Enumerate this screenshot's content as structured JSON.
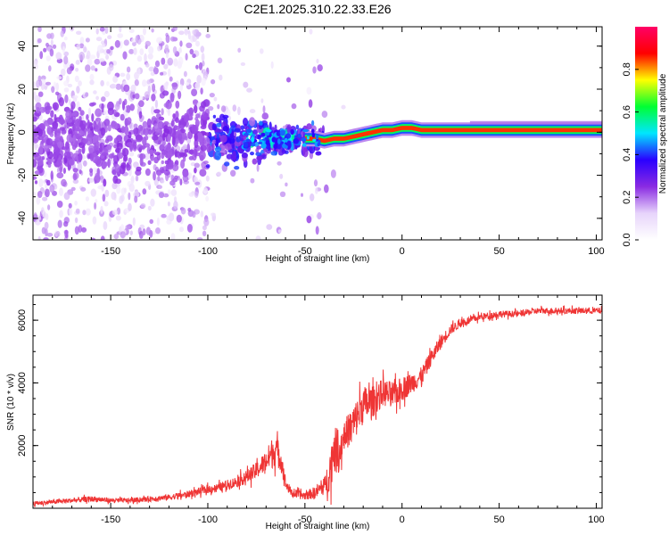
{
  "title": "C2E1.2025.310.22.33.E26",
  "chart_data": [
    {
      "type": "heatmap",
      "xlabel": "Height of straight line (km)",
      "ylabel": "Frequency (Hz)",
      "xlim": [
        -190,
        103
      ],
      "ylim": [
        -50,
        49
      ],
      "xticks": [
        -150,
        -100,
        -50,
        0,
        50,
        100
      ],
      "xtick_labels": [
        "-150",
        "-100",
        "-50",
        "0",
        "50",
        "100"
      ],
      "yticks": [
        -40,
        -20,
        0,
        20,
        40
      ],
      "ytick_labels": [
        "-40",
        "-20",
        "0",
        "20",
        "40"
      ],
      "carrier_path": {
        "x": [
          -60,
          -50,
          -45,
          -40,
          -35,
          -30,
          -25,
          -20,
          -15,
          -10,
          -5,
          0,
          5,
          10,
          20,
          40,
          60,
          80,
          103
        ],
        "y": [
          -3,
          -3,
          -3,
          -4,
          -3,
          -3,
          -2,
          -1,
          0,
          1,
          1,
          2,
          2,
          1,
          1,
          1,
          1,
          1,
          1
        ]
      },
      "colorbar": {
        "label": "Normalized spectral amplitude",
        "range": [
          0,
          1
        ],
        "ticks": [
          0.0,
          0.2,
          0.4,
          0.6,
          0.8
        ],
        "tick_labels": [
          "0.0",
          "0.2",
          "0.4",
          "0.6",
          "0.8"
        ],
        "colors": [
          "#ffffff",
          "#e7d4fb",
          "#8a2be2",
          "#2a00ff",
          "#00e6ff",
          "#00ff33",
          "#ffff00",
          "#ff0000",
          "#ff0066"
        ]
      }
    },
    {
      "type": "line",
      "xlabel": "Height of straight line (km)",
      "ylabel": "SNR (10 * v/v)",
      "xlim": [
        -190,
        103
      ],
      "ylim": [
        0,
        6800
      ],
      "xticks": [
        -150,
        -100,
        -50,
        0,
        50,
        100
      ],
      "xtick_labels": [
        "-150",
        "-100",
        "-50",
        "0",
        "50",
        "100"
      ],
      "yticks": [
        2000,
        4000,
        6000
      ],
      "ytick_labels": [
        "2000",
        "4000",
        "6000"
      ],
      "series": [
        {
          "name": "SNR",
          "color": "#ef3535",
          "x": [
            -190,
            -180,
            -170,
            -160,
            -150,
            -140,
            -130,
            -120,
            -110,
            -100,
            -95,
            -90,
            -85,
            -80,
            -75,
            -70,
            -67,
            -65,
            -62,
            -60,
            -57,
            -55,
            -50,
            -45,
            -40,
            -37,
            -35,
            -33,
            -30,
            -25,
            -20,
            -15,
            -10,
            -5,
            0,
            5,
            10,
            15,
            20,
            25,
            30,
            35,
            40,
            50,
            60,
            70,
            80,
            90,
            103
          ],
          "y": [
            150,
            200,
            250,
            300,
            250,
            250,
            300,
            350,
            450,
            600,
            650,
            750,
            850,
            1000,
            1200,
            1500,
            1750,
            1900,
            1500,
            800,
            500,
            450,
            400,
            500,
            700,
            1200,
            2000,
            1600,
            2300,
            2700,
            3300,
            3400,
            3700,
            3600,
            3800,
            4000,
            4200,
            4800,
            5300,
            5700,
            5900,
            6000,
            6100,
            6200,
            6200,
            6300,
            6300,
            6300,
            6300
          ],
          "noise_amplitude": [
            120,
            130,
            140,
            160,
            140,
            140,
            150,
            170,
            200,
            230,
            250,
            280,
            320,
            400,
            480,
            650,
            900,
            900,
            700,
            350,
            250,
            250,
            250,
            350,
            500,
            1200,
            1500,
            1000,
            900,
            1100,
            1100,
            900,
            800,
            800,
            700,
            600,
            550,
            450,
            400,
            300,
            250,
            220,
            200,
            200,
            180,
            180,
            180,
            180,
            180
          ]
        }
      ]
    }
  ]
}
